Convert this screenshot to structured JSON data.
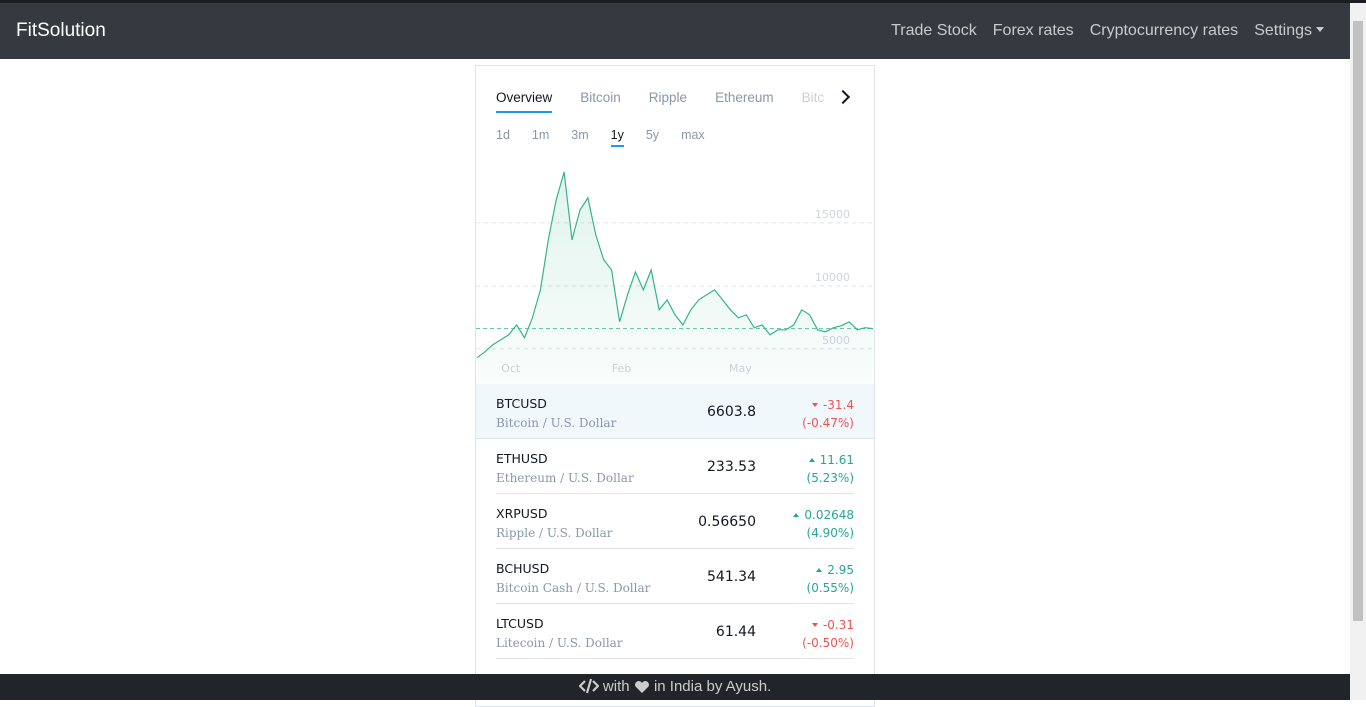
{
  "nav": {
    "brand": "FitSolution",
    "links": [
      "Trade Stock",
      "Forex rates",
      "Cryptocurrency rates",
      "Settings"
    ]
  },
  "tabs": {
    "items": [
      "Overview",
      "Bitcoin",
      "Ripple",
      "Ethereum",
      "Bitc"
    ],
    "active": 0
  },
  "ranges": {
    "items": [
      "1d",
      "1m",
      "3m",
      "1y",
      "5y",
      "max"
    ],
    "active": 3
  },
  "chart_data": {
    "type": "line",
    "categories": [
      null,
      null,
      null,
      null,
      "Oct",
      null,
      null,
      null,
      null,
      null,
      null,
      null,
      null,
      null,
      null,
      null,
      null,
      null,
      "Feb",
      null,
      null,
      null,
      null,
      null,
      null,
      null,
      null,
      null,
      null,
      null,
      null,
      null,
      null,
      "May",
      null,
      null,
      null,
      null,
      null,
      null,
      null,
      null,
      null,
      null,
      null,
      null,
      null,
      null,
      null,
      null,
      null
    ],
    "series": [
      {
        "name": "BTCUSD",
        "color": "#37b58a",
        "values": [
          4290,
          4760,
          5320,
          5710,
          6110,
          6900,
          5870,
          7460,
          9680,
          13650,
          16830,
          19050,
          13650,
          16030,
          17000,
          14050,
          12070,
          11270,
          7140,
          9290,
          11110,
          9680,
          11270,
          8100,
          8890,
          7700,
          6900,
          8100,
          8890,
          9290,
          9680,
          8890,
          8100,
          7460,
          7700,
          6670,
          6900,
          6110,
          6510,
          6510,
          6900,
          8100,
          7700,
          6510,
          6350,
          6670,
          6830,
          7140,
          6510,
          6670,
          6600
        ]
      }
    ],
    "ylim": [
      2200,
      20000
    ],
    "yticks": [
      5000,
      10000,
      15000
    ],
    "grid": true
  },
  "rows": [
    {
      "symbol": "BTCUSD",
      "name": "Bitcoin / U.S. Dollar",
      "price": "6603.8",
      "change": "-31.4",
      "percent": "(-0.47%)"
    },
    {
      "symbol": "ETHUSD",
      "name": "Ethereum / U.S. Dollar",
      "price": "233.53",
      "change": "11.61",
      "percent": "(5.23%)"
    },
    {
      "symbol": "XRPUSD",
      "name": "Ripple / U.S. Dollar",
      "price": "0.56650",
      "change": "0.02648",
      "percent": "(4.90%)"
    },
    {
      "symbol": "BCHUSD",
      "name": "Bitcoin Cash / U.S. Dollar",
      "price": "541.34",
      "change": "2.95",
      "percent": "(0.55%)"
    },
    {
      "symbol": "LTCUSD",
      "name": "Litecoin / U.S. Dollar",
      "price": "61.44",
      "change": "-0.31",
      "percent": "(-0.50%)"
    }
  ],
  "footer": {
    "parts": [
      "with",
      "in India by Ayush."
    ]
  }
}
